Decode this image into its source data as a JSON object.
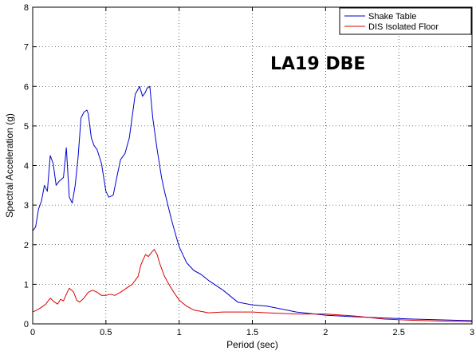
{
  "chart_data": {
    "type": "line",
    "title": "",
    "xlabel": "Period (sec)",
    "ylabel": "Spectral Acceleration (g)",
    "xlim": [
      0,
      3
    ],
    "ylim": [
      0,
      8
    ],
    "xticks": [
      0,
      0.5,
      1,
      1.5,
      2,
      2.5,
      3
    ],
    "xtick_labels": [
      "0",
      "0.5",
      "1",
      "1.5",
      "2",
      "2.5",
      "3"
    ],
    "yticks": [
      0,
      1,
      2,
      3,
      4,
      5,
      6,
      7,
      8
    ],
    "ytick_labels": [
      "0",
      "1",
      "2",
      "3",
      "4",
      "5",
      "6",
      "7",
      "8"
    ],
    "grid": true,
    "legend_position": "top-right",
    "annotation": "LA19 DBE",
    "series": [
      {
        "name": "Shake Table",
        "color": "#0000cc",
        "x": [
          0,
          0.02,
          0.04,
          0.06,
          0.08,
          0.1,
          0.12,
          0.14,
          0.16,
          0.18,
          0.21,
          0.23,
          0.25,
          0.27,
          0.29,
          0.31,
          0.33,
          0.35,
          0.37,
          0.38,
          0.4,
          0.42,
          0.44,
          0.47,
          0.5,
          0.52,
          0.55,
          0.58,
          0.6,
          0.63,
          0.66,
          0.7,
          0.73,
          0.75,
          0.77,
          0.78,
          0.8,
          0.82,
          0.85,
          0.88,
          0.9,
          0.93,
          0.95,
          0.98,
          1,
          1.05,
          1.1,
          1.15,
          1.2,
          1.3,
          1.4,
          1.5,
          1.6,
          1.8,
          2,
          2.2,
          2.4,
          2.6,
          2.8,
          3
        ],
        "y": [
          2.35,
          2.45,
          2.9,
          3.1,
          3.5,
          3.35,
          4.25,
          4.05,
          3.5,
          3.6,
          3.7,
          4.45,
          3.2,
          3.05,
          3.5,
          4.2,
          5.2,
          5.35,
          5.4,
          5.3,
          4.7,
          4.5,
          4.4,
          4.05,
          3.35,
          3.2,
          3.25,
          3.8,
          4.15,
          4.3,
          4.7,
          5.8,
          6.0,
          5.75,
          5.85,
          5.95,
          6.0,
          5.2,
          4.4,
          3.7,
          3.35,
          2.9,
          2.6,
          2.2,
          1.95,
          1.55,
          1.35,
          1.25,
          1.1,
          0.85,
          0.55,
          0.48,
          0.45,
          0.3,
          0.22,
          0.18,
          0.15,
          0.12,
          0.1,
          0.08
        ]
      },
      {
        "name": "DIS Isolated Floor",
        "color": "#dd0000",
        "x": [
          0,
          0.03,
          0.06,
          0.09,
          0.12,
          0.15,
          0.17,
          0.19,
          0.21,
          0.23,
          0.25,
          0.28,
          0.3,
          0.32,
          0.35,
          0.38,
          0.41,
          0.44,
          0.47,
          0.5,
          0.53,
          0.56,
          0.6,
          0.64,
          0.68,
          0.72,
          0.74,
          0.77,
          0.79,
          0.81,
          0.83,
          0.85,
          0.87,
          0.9,
          0.93,
          0.96,
          1,
          1.05,
          1.1,
          1.2,
          1.3,
          1.4,
          1.5,
          1.6,
          1.8,
          2,
          2.2,
          2.4,
          2.6,
          2.8,
          3
        ],
        "y": [
          0.3,
          0.35,
          0.42,
          0.5,
          0.65,
          0.55,
          0.5,
          0.62,
          0.58,
          0.75,
          0.9,
          0.8,
          0.6,
          0.55,
          0.65,
          0.8,
          0.85,
          0.8,
          0.72,
          0.72,
          0.75,
          0.72,
          0.8,
          0.9,
          1.0,
          1.2,
          1.5,
          1.75,
          1.7,
          1.8,
          1.88,
          1.75,
          1.5,
          1.2,
          1.0,
          0.82,
          0.6,
          0.45,
          0.35,
          0.28,
          0.3,
          0.3,
          0.3,
          0.28,
          0.25,
          0.25,
          0.2,
          0.12,
          0.09,
          0.07,
          0.06
        ]
      }
    ]
  }
}
